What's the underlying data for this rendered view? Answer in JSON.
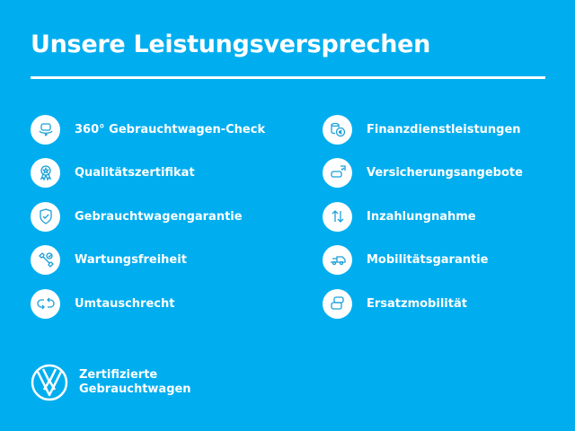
{
  "title": "Unsere Leistungsversprechen",
  "left_items": [
    {
      "label": "360° Gebrauchtwagen-Check",
      "icon": "car-360-icon"
    },
    {
      "label": "Qualitätszertifikat",
      "icon": "award-icon"
    },
    {
      "label": "Gebrauchtwagengarantie",
      "icon": "shield-check-icon"
    },
    {
      "label": "Wartungsfreiheit",
      "icon": "wrench-check-icon"
    },
    {
      "label": "Umtauschrecht",
      "icon": "exchange-icon"
    }
  ],
  "right_items": [
    {
      "label": "Finanzdienstleistungen",
      "icon": "euro-coins-icon"
    },
    {
      "label": "Versicherungsangebote",
      "icon": "car-insurance-icon"
    },
    {
      "label": "Inzahlungnahme",
      "icon": "arrows-up-down-icon"
    },
    {
      "label": "Mobilitätsgarantie",
      "icon": "tow-truck-icon"
    },
    {
      "label": "Ersatzmobilität",
      "icon": "cars-icon"
    }
  ],
  "brand": {
    "line1": "Zertifizierte",
    "line2": "Gebrauchtwagen",
    "logo": "VW"
  },
  "colors": {
    "background": "#00aeef",
    "foreground": "#ffffff",
    "icon": "#1aa0d8"
  }
}
